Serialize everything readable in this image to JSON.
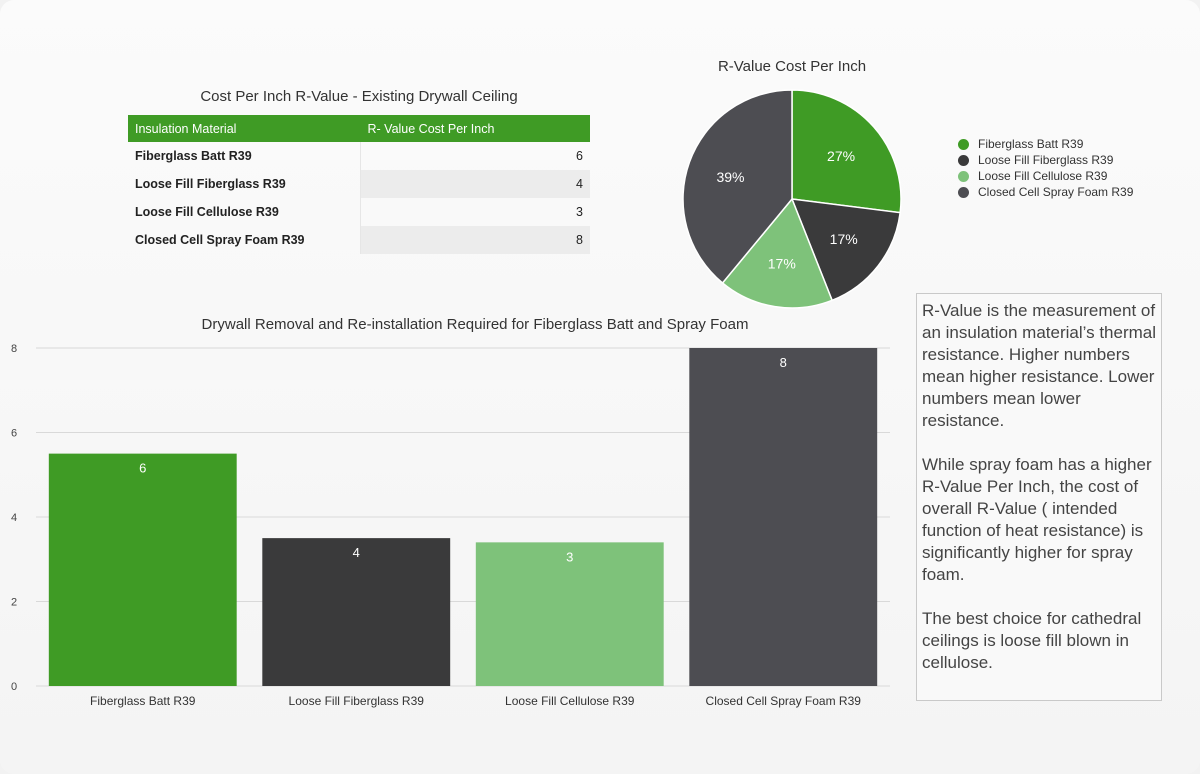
{
  "colors": {
    "fiberglass_batt": "#3f9b25",
    "loose_fill_fiberglass": "#3a3a3b",
    "loose_fill_cellulose": "#7ec27a",
    "closed_cell_spray_foam": "#4d4d52"
  },
  "table": {
    "title": "Cost Per Inch R-Value - Existing Drywall Ceiling",
    "headers": [
      "Insulation Material",
      "R- Value Cost Per Inch"
    ],
    "rows": [
      {
        "name": "Fiberglass Batt R39",
        "value": "6"
      },
      {
        "name": "Loose Fill Fiberglass R39",
        "value": "4"
      },
      {
        "name": "Loose Fill Cellulose R39",
        "value": "3"
      },
      {
        "name": "Closed Cell Spray Foam R39",
        "value": "8"
      }
    ]
  },
  "info": {
    "p1": "R-Value is the measurement of an insulation material’s thermal resistance. Higher numbers mean higher resistance. Lower numbers mean lower resistance.",
    "p2": "While spray foam has a higher R-Value Per Inch, the cost of overall R-Value ( intended function of heat resistance) is significantly higher for spray foam.",
    "p3": "The best choice for cathedral ceilings is loose fill blown in cellulose."
  },
  "chart_data": [
    {
      "type": "pie",
      "title": "R-Value Cost Per Inch",
      "categories": [
        "Fiberglass Batt R39",
        "Loose Fill Fiberglass R39",
        "Loose Fill Cellulose R39",
        "Closed Cell Spray Foam R39"
      ],
      "values": [
        27,
        17,
        17,
        39
      ],
      "labels": [
        "27%",
        "17%",
        "17%",
        "39%"
      ],
      "legend_position": "right"
    },
    {
      "type": "bar",
      "title": "Drywall Removal and Re-installation Required for Fiberglass Batt and Spray Foam",
      "categories": [
        "Fiberglass Batt R39",
        "Loose Fill Fiberglass R39",
        "Loose Fill Cellulose R39",
        "Closed Cell Spray Foam R39"
      ],
      "values": [
        5.5,
        3.5,
        3.4,
        8
      ],
      "data_labels": [
        "6",
        "4",
        "3",
        "8"
      ],
      "yticks": [
        "0",
        "2",
        "4",
        "6",
        "8"
      ],
      "ylim": [
        0,
        8
      ],
      "grid": true
    }
  ]
}
